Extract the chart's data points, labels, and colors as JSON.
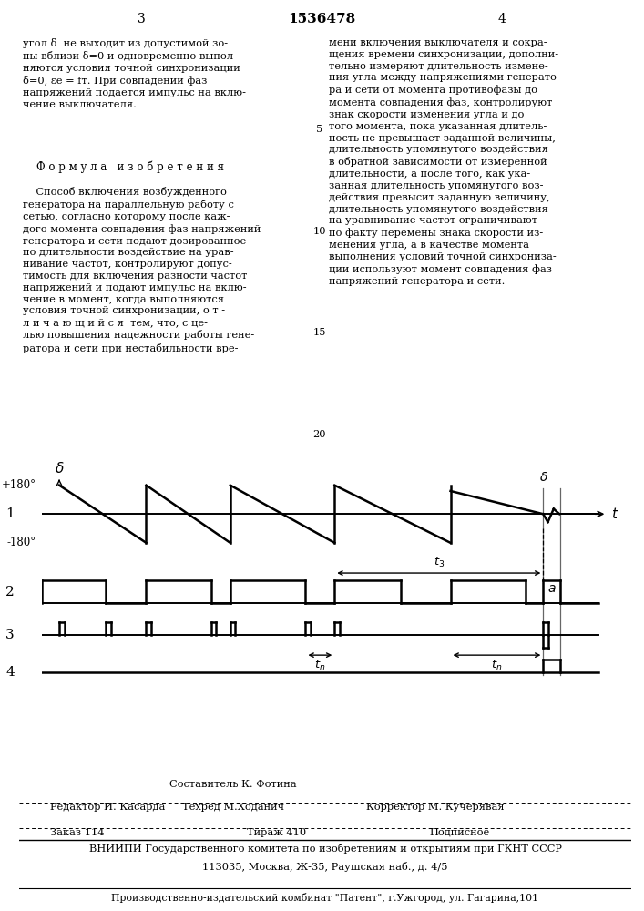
{
  "bg_color": "#ffffff",
  "title": "1536478",
  "page_num_left": "3",
  "page_num_right": "4",
  "row1_label": "1",
  "row2_label": "2",
  "row3_label": "3",
  "row4_label": "4",
  "y_plus180": "+180",
  "y_minus180": "-180",
  "label_t": "t",
  "label_delta_ax": "δ",
  "label_b": "δ",
  "label_a": "a",
  "label_t3": "t3",
  "label_tn": "tn",
  "text_left_top": "угол δ  не выходит из допустимой зо-\nны вблизи δ=0 и одновременно выпол-\nняются условия точной синхронизации\nδ=0, εe = fт. При совпадении фаз\nнапряжений подается импульс на вклю-\nчение выключателя.",
  "text_formula": "Ф о р м у л а   и з о б р е т е н и я",
  "text_left_bottom": "    Способ включения возбужденного\nгенератора на параллельную работу с\nсетью, согласно которому после каж-\nдого момента совпадения фаз напряжений\nгенератора и сети подают дозированное\nпо длительности воздействие на урав-\nнивание частот, контролируют допус-\nтимость для включения разности частот\nнапряжений и подают импульс на вклю-\nчение в момент, когда выполняются\nусловия точной синхронизации, о т -\nл и ч а ю щ и й с я  тем, что, с це-\nлью повышения надежности работы гене-\nратора и сети при нестабильности вре-",
  "text_right_top": "мени включения выключателя и сокра-\nщения времени синхронизации, дополни-\nтельно измеряют длительность измене-\nния угла между напряжениями генерато-\nра и сети от момента противофазы до\nмомента совпадения фаз, контролируют\nзнак скорости изменения угла и до\nтого момента, пока указанная длитель-\nность не превышает заданной величины,\nдлительность упомянутого воздействия\nв обратной зависимости от измеренной\nдлительности, а после того, как ука-\nзанная длительность упомянутого воз-\nдействия превысит заданную величину,\nдлительность упомянутого воздействия\nна уравнивание частот ограничивают\nпо факту перемены знака скорости из-\nменения угла, а в качестве момента\nвыполнения условий точной синхрониза-\nции используют момент совпадения фаз\nнапряжений генератора и сети.",
  "footer_compiler": "Составитель К. Фотина",
  "footer_editor": "Редактор И. Касарда",
  "footer_techred": "Техред М.Ходанич",
  "footer_corrector": "Корректор М. Кучерявая",
  "footer_order": "Заказ 114",
  "footer_print": "Тираж 410",
  "footer_sub": "Подписное",
  "footer_vniip": "ВНИИПИ Государственного комитета по изобретениям и открытиям при ГКНТ СССР",
  "footer_address": "113035, Москва, Ж-35, Раушская наб., д. 4/5",
  "footer_pub": "Производственно-издательский комбинат \"Патент\", г.Ужгород, ул. Гагарина,101",
  "line_numbers": [
    5,
    10,
    15,
    20
  ]
}
